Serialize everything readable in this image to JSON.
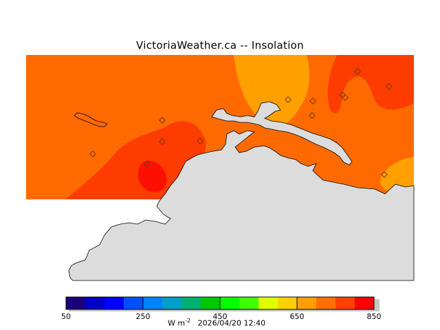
{
  "title": "VictoriaWeather.ca -- Insolation",
  "colorbar": {
    "colors": [
      "#1a007a",
      "#0000c8",
      "#0000ff",
      "#0050ff",
      "#0085ff",
      "#00a0c8",
      "#00b070",
      "#00c800",
      "#00ff00",
      "#40ff00",
      "#e0ff00",
      "#ffd000",
      "#ffa000",
      "#ff7000",
      "#ff4000",
      "#ff0000"
    ],
    "ticks": [
      {
        "label": "50",
        "value": 50
      },
      {
        "label": "250",
        "value": 250
      },
      {
        "label": "450",
        "value": 450
      },
      {
        "label": "650",
        "value": 650
      },
      {
        "label": "850",
        "value": 850
      }
    ],
    "min": 50,
    "max": 850
  },
  "footer": {
    "units": "W m",
    "units_exp": "-2",
    "timestamp": "2026/04/20 12:40"
  },
  "map_colors": {
    "land": "#dcdcdc",
    "field_base": "#ff6a00",
    "field_low": "#ffa000",
    "field_high": "#ff3c00",
    "field_peak": "#ff1000",
    "station_marker": "#7a3a10"
  }
}
